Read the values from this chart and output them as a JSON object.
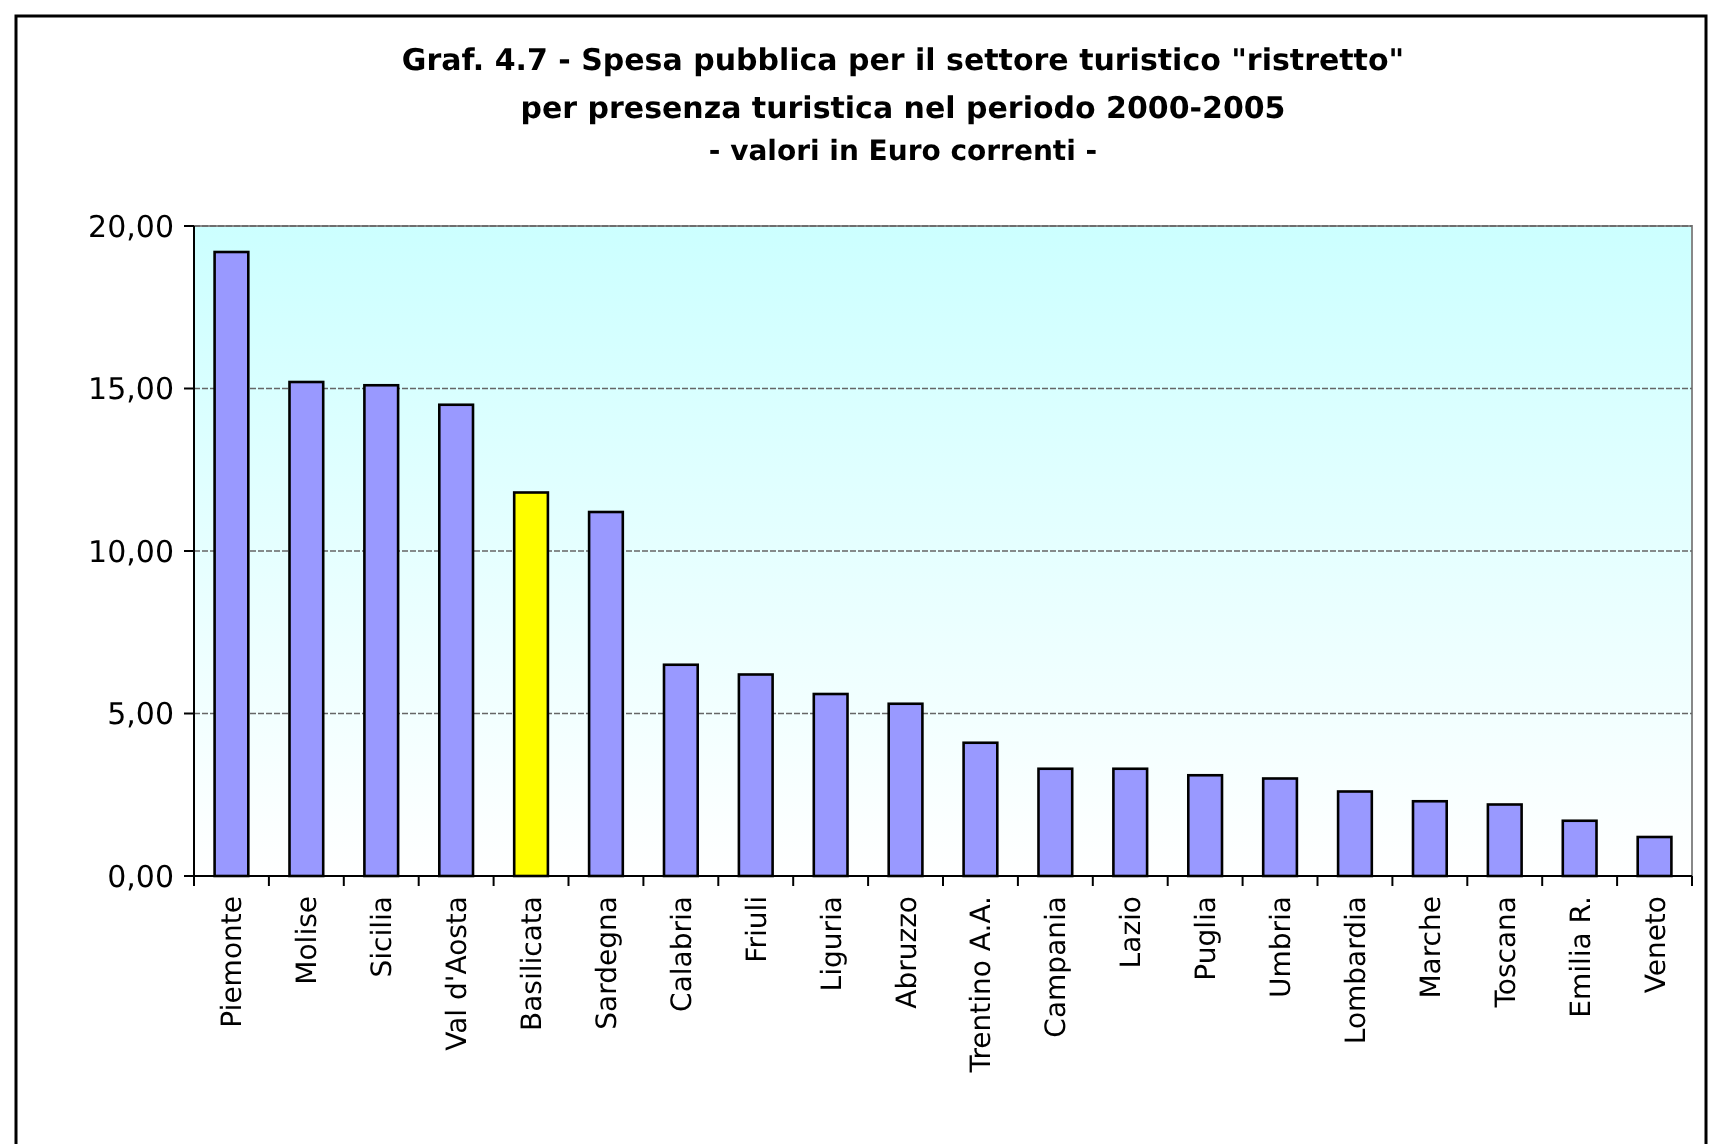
{
  "chart_data": {
    "type": "bar",
    "title": "Graf. 4.7 - Spesa pubblica per il settore turistico \"ristretto\"\nper presenza turistica nel periodo 2000-2005",
    "subtitle": "- valori in Euro correnti -",
    "categories": [
      "Piemonte",
      "Molise",
      "Sicilia",
      "Val d'Aosta",
      "Basilicata",
      "Sardegna",
      "Calabria",
      "Friuli",
      "Liguria",
      "Abruzzo",
      "Trentino A.A.",
      "Campania",
      "Lazio",
      "Puglia",
      "Umbria",
      "Lombardia",
      "Marche",
      "Toscana",
      "Emilia R.",
      "Veneto"
    ],
    "values": [
      19.2,
      15.2,
      15.1,
      14.5,
      11.8,
      11.2,
      6.5,
      6.2,
      5.6,
      5.3,
      4.1,
      3.3,
      3.3,
      3.1,
      3.0,
      2.6,
      2.3,
      2.2,
      1.7,
      1.2
    ],
    "colors": [
      "#9999ff",
      "#9999ff",
      "#9999ff",
      "#9999ff",
      "#ffff00",
      "#9999ff",
      "#9999ff",
      "#9999ff",
      "#9999ff",
      "#9999ff",
      "#9999ff",
      "#9999ff",
      "#9999ff",
      "#9999ff",
      "#9999ff",
      "#9999ff",
      "#9999ff",
      "#9999ff",
      "#9999ff",
      "#9999ff"
    ],
    "ylim": [
      0,
      20
    ],
    "yticks": [
      {
        "value": 0,
        "label": "0,00"
      },
      {
        "value": 5,
        "label": "5,00"
      },
      {
        "value": 10,
        "label": "10,00"
      },
      {
        "value": 15,
        "label": "15,00"
      },
      {
        "value": 20,
        "label": "20,00"
      }
    ],
    "grid": "y"
  }
}
